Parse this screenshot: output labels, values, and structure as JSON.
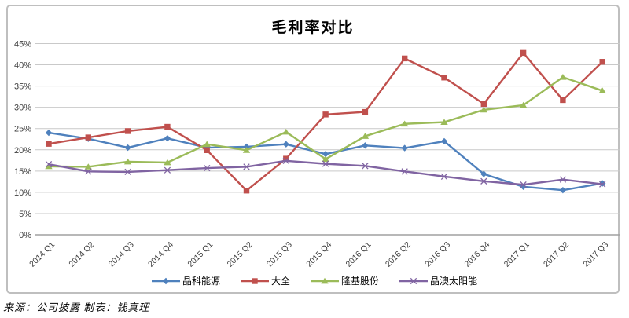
{
  "header": {
    "title": "毛利率对比"
  },
  "footer": {
    "source": "来源：公司披露  制表：钱真理"
  },
  "chart_data": {
    "type": "line",
    "title": "毛利率对比",
    "categories": [
      "2014 Q1",
      "2014 Q2",
      "2014 Q3",
      "2014 Q4",
      "2015 Q1",
      "2015 Q2",
      "2015 Q3",
      "2015 Q4",
      "2016 Q1",
      "2016 Q2",
      "2016 Q3",
      "2016 Q4",
      "2017 Q1",
      "2017 Q2",
      "2017 Q3"
    ],
    "series": [
      {
        "name": "晶科能源",
        "color": "#4F81BD",
        "marker": "diamond",
        "values": [
          24.0,
          22.6,
          20.5,
          22.7,
          20.5,
          20.7,
          21.3,
          19.0,
          21.0,
          20.4,
          22.0,
          14.3,
          11.3,
          10.5,
          12.1
        ]
      },
      {
        "name": "大全",
        "color": "#C0504D",
        "marker": "square",
        "values": [
          21.4,
          22.9,
          24.4,
          25.4,
          19.9,
          10.4,
          17.9,
          28.3,
          28.9,
          41.5,
          37.0,
          30.8,
          42.8,
          31.7,
          40.7
        ]
      },
      {
        "name": "隆基股份",
        "color": "#9BBB59",
        "marker": "triangle",
        "values": [
          16.1,
          16.0,
          17.2,
          17.0,
          21.3,
          19.9,
          24.2,
          17.8,
          23.2,
          26.1,
          26.5,
          29.4,
          30.5,
          37.1,
          33.9
        ]
      },
      {
        "name": "晶澳太阳能",
        "color": "#8064A2",
        "marker": "x",
        "values": [
          16.6,
          14.9,
          14.8,
          15.2,
          15.7,
          16.0,
          17.4,
          16.7,
          16.2,
          14.9,
          13.7,
          12.6,
          11.8,
          13.0,
          11.9
        ]
      }
    ],
    "ylim": [
      0,
      45
    ],
    "y_tick_step": 5,
    "y_tick_labels": [
      "0%",
      "5%",
      "10%",
      "15%",
      "20%",
      "25%",
      "30%",
      "35%",
      "40%",
      "45%"
    ],
    "grid": "horizontal",
    "legend_position": "bottom",
    "colors": {
      "gridline": "#c9c9c9",
      "axis_line": "#a0a0a0",
      "tick_text": "#3f3f3f",
      "frame_border": "#bfbfbf"
    }
  }
}
